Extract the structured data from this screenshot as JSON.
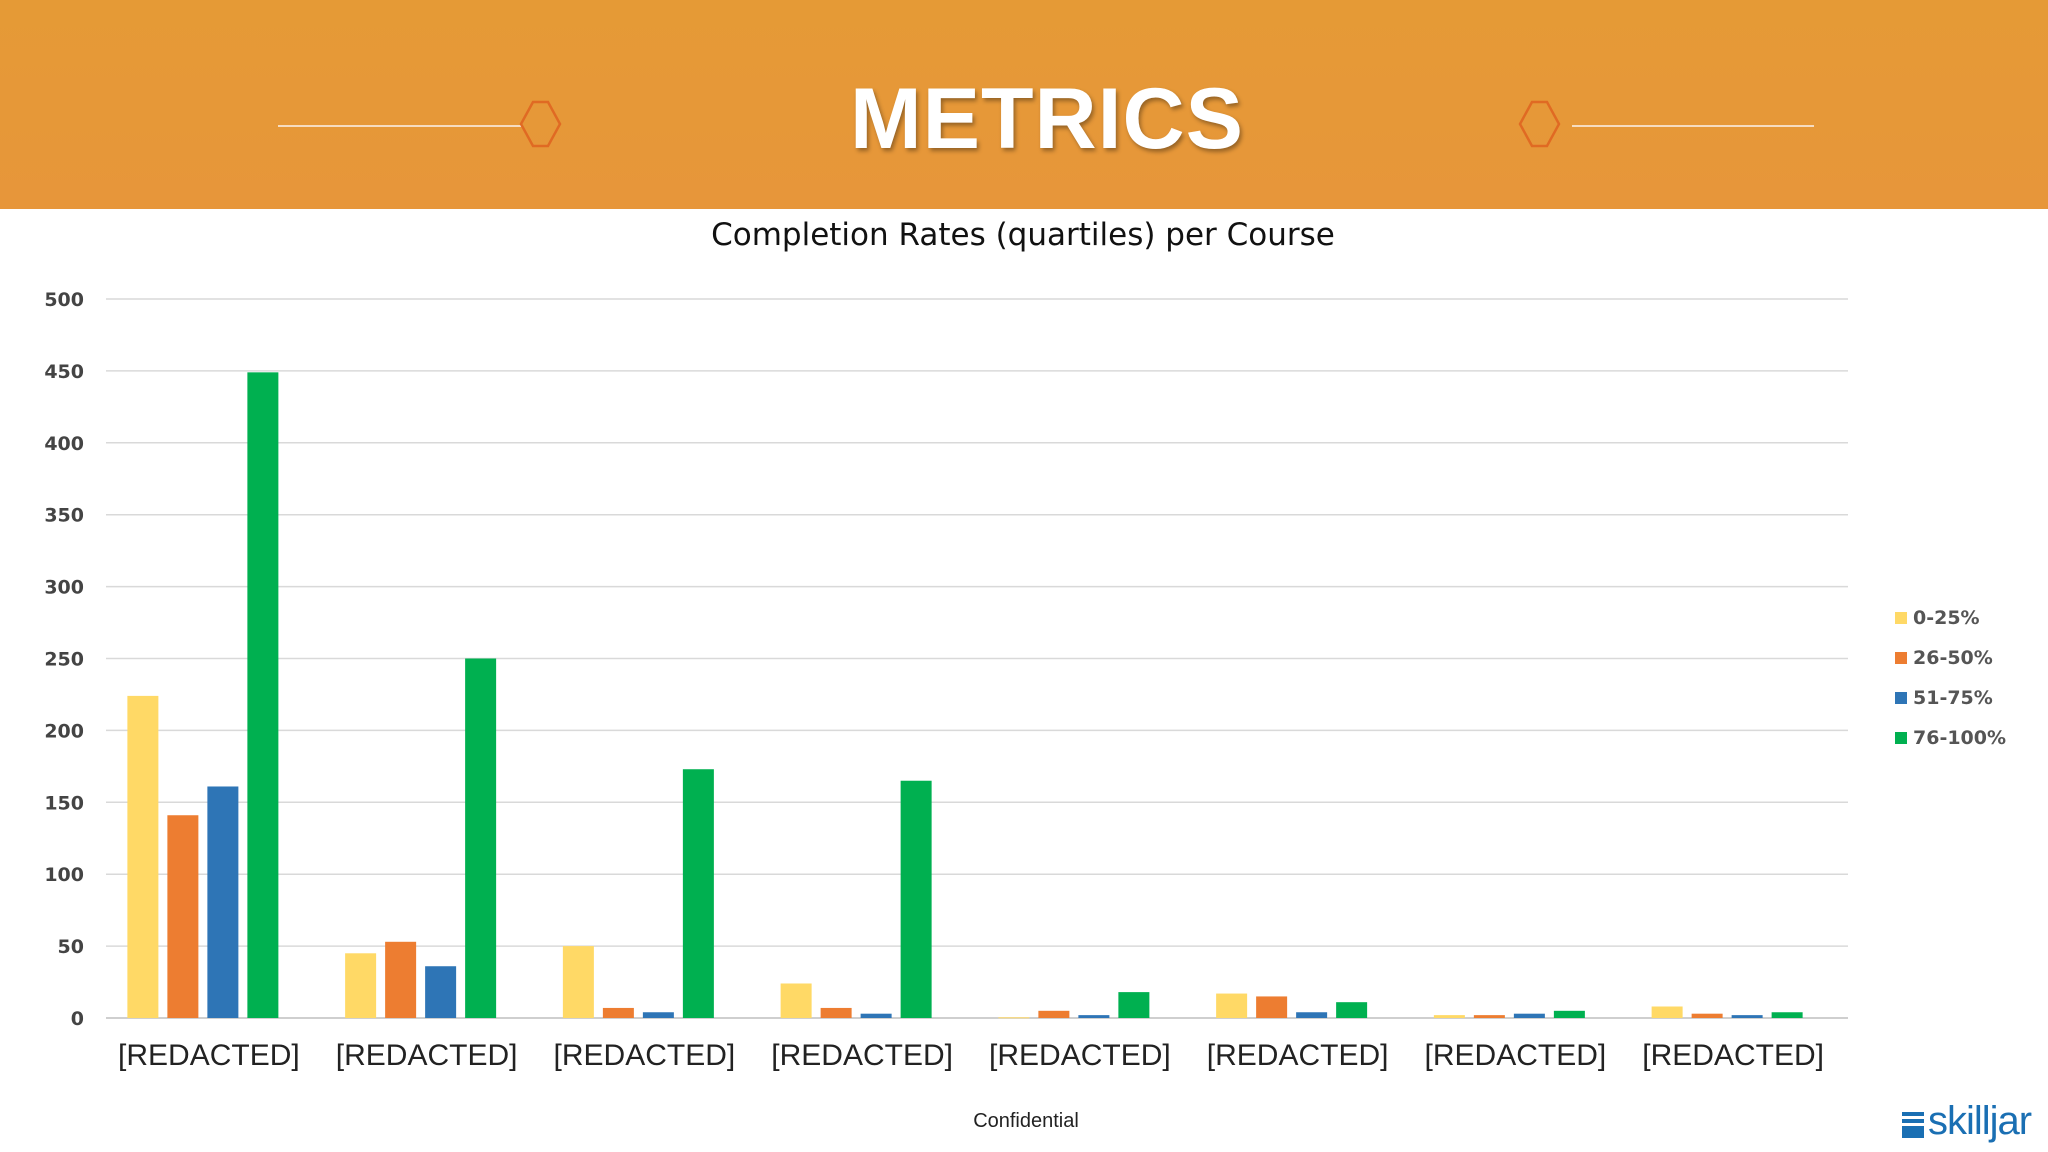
{
  "banner": {
    "title": "METRICS"
  },
  "chart_data": {
    "type": "bar",
    "title": "Completion Rates (quartiles) per Course",
    "xlabel": "",
    "ylabel": "",
    "ylim": [
      0,
      500
    ],
    "yticks": [
      0,
      50,
      100,
      150,
      200,
      250,
      300,
      350,
      400,
      450,
      500
    ],
    "grid": true,
    "legend_position": "right",
    "categories": [
      "[REDACTED]",
      "[REDACTED]",
      "[REDACTED]",
      "[REDACTED]",
      "[REDACTED]",
      "[REDACTED]",
      "[REDACTED]",
      "[REDACTED]"
    ],
    "series": [
      {
        "name": "0-25%",
        "color": "#ffd966",
        "values": [
          224,
          45,
          50,
          24,
          0.5,
          17,
          2,
          8
        ]
      },
      {
        "name": "26-50%",
        "color": "#ed7d31",
        "values": [
          141,
          53,
          7,
          7,
          5,
          15,
          2,
          3
        ]
      },
      {
        "name": "51-75%",
        "color": "#2e75b6",
        "values": [
          161,
          36,
          4,
          3,
          2,
          4,
          3,
          2
        ]
      },
      {
        "name": "76-100%",
        "color": "#00b050",
        "values": [
          449,
          250,
          173,
          165,
          18,
          11,
          5,
          4
        ]
      }
    ]
  },
  "footer": {
    "text": "Confidential"
  },
  "brand": {
    "name": "skilljar",
    "color": "#1a6fb3"
  }
}
